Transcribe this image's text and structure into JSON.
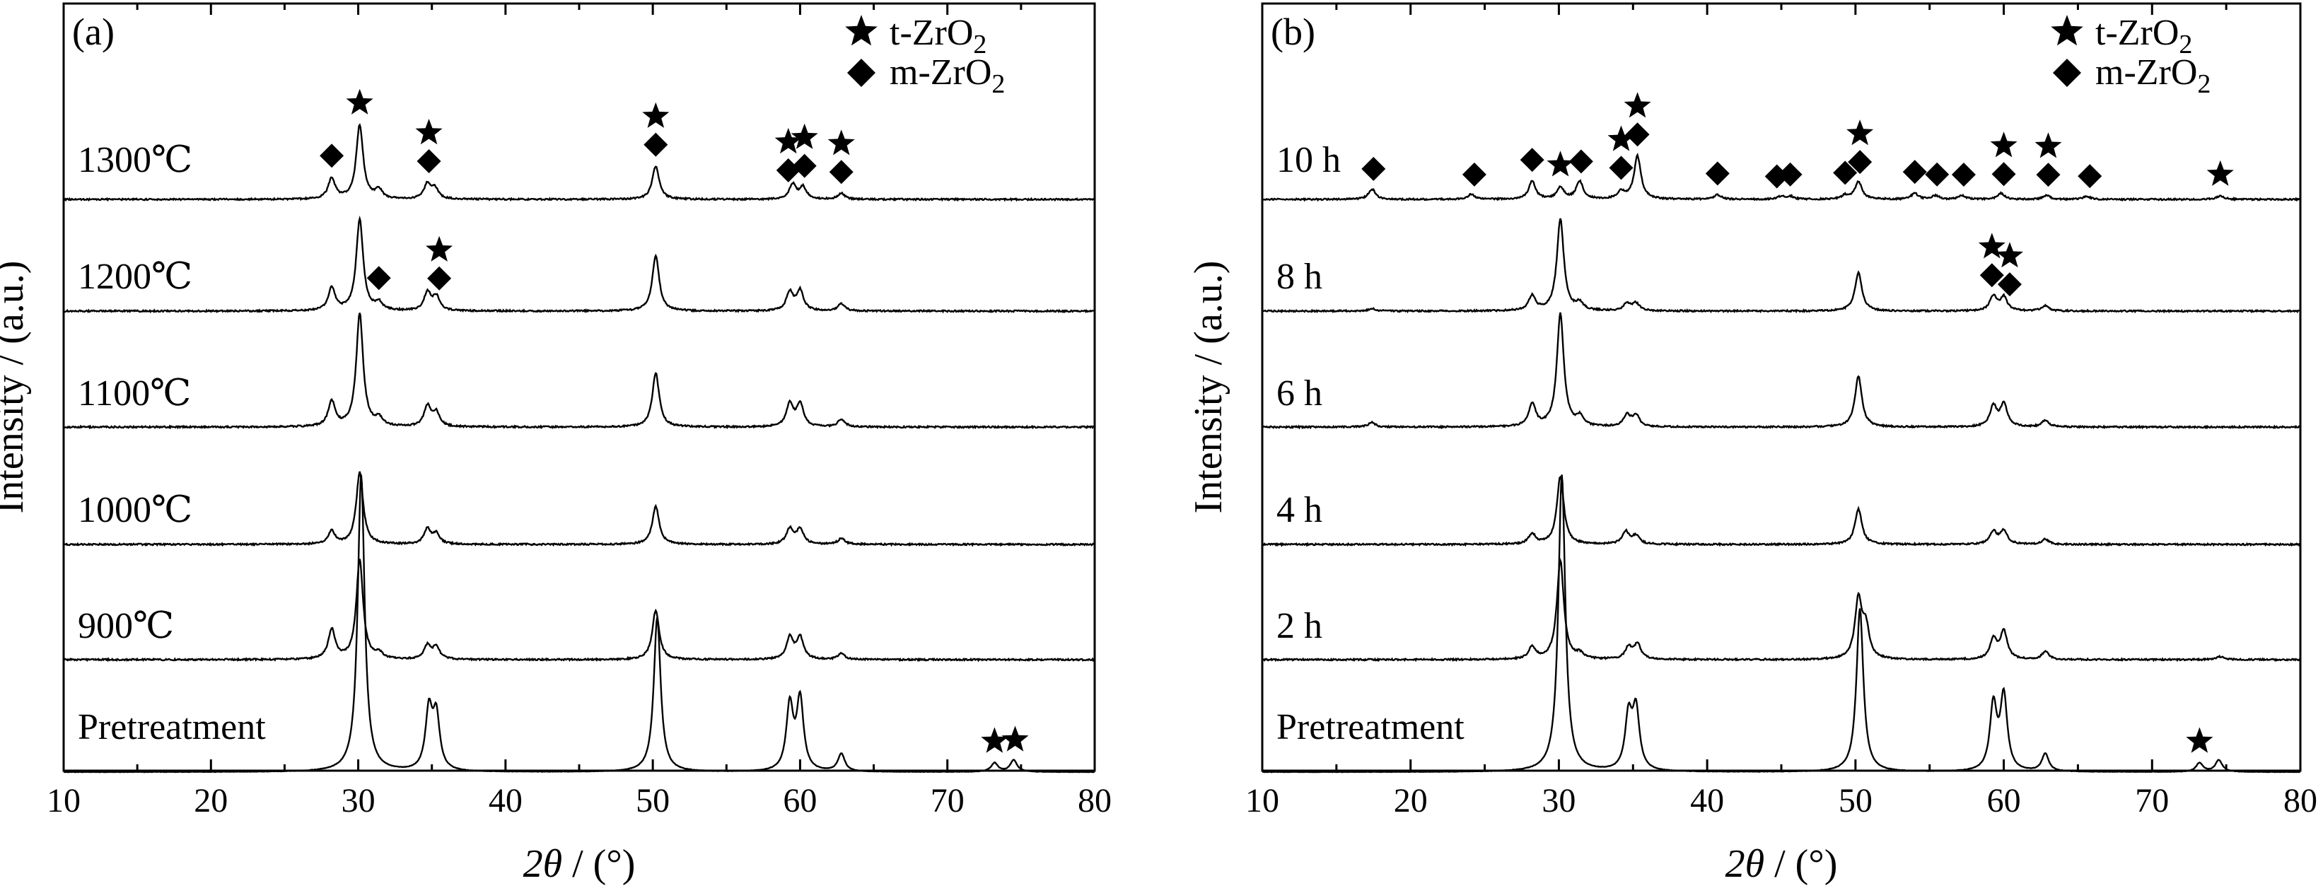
{
  "chart_data": [
    {
      "type": "line",
      "panel_label": "(a)",
      "xlabel_italic": "2θ",
      "xlabel_rest": " / (°)",
      "ylabel": "Intensity / (a.u.)",
      "xlim": [
        10,
        80
      ],
      "xticks": [
        "10",
        "20",
        "30",
        "40",
        "50",
        "60",
        "70",
        "80"
      ],
      "yticks_shown": false,
      "grid": false,
      "legend_position": "top-right",
      "legend": [
        {
          "marker": "star",
          "label": "t-ZrO",
          "sub": "2"
        },
        {
          "marker": "diamond",
          "label": "m-ZrO",
          "sub": "2"
        }
      ],
      "series": [
        {
          "name": "1300℃",
          "peaks": [
            [
              28.2,
              0.28
            ],
            [
              30.1,
              1.0
            ],
            [
              31.4,
              0.12
            ],
            [
              34.7,
              0.2
            ],
            [
              35.2,
              0.14
            ],
            [
              50.2,
              0.45
            ],
            [
              59.5,
              0.2
            ],
            [
              60.2,
              0.16
            ],
            [
              62.8,
              0.08
            ]
          ],
          "markers": [
            {
              "type": "diamond",
              "x": 28.2
            },
            {
              "type": "star",
              "x": 30.1
            },
            {
              "type": "star",
              "x": 34.8
            },
            {
              "type": "diamond",
              "x": 34.8
            },
            {
              "type": "star",
              "x": 50.2
            },
            {
              "type": "diamond",
              "x": 50.2
            },
            {
              "type": "star",
              "x": 59.2
            },
            {
              "type": "diamond",
              "x": 59.2
            },
            {
              "type": "star",
              "x": 60.3
            },
            {
              "type": "diamond",
              "x": 60.3
            },
            {
              "type": "star",
              "x": 62.8
            },
            {
              "type": "diamond",
              "x": 62.8
            }
          ]
        },
        {
          "name": "1200℃",
          "peaks": [
            [
              28.2,
              0.25
            ],
            [
              30.1,
              1.0
            ],
            [
              31.4,
              0.08
            ],
            [
              34.7,
              0.2
            ],
            [
              35.3,
              0.15
            ],
            [
              50.2,
              0.6
            ],
            [
              59.3,
              0.2
            ],
            [
              60.0,
              0.22
            ],
            [
              62.8,
              0.08
            ]
          ],
          "markers": [
            {
              "type": "diamond",
              "x": 31.4
            },
            {
              "type": "star",
              "x": 35.5
            },
            {
              "type": "diamond",
              "x": 35.5
            }
          ]
        },
        {
          "name": "1100℃",
          "peaks": [
            [
              28.2,
              0.22
            ],
            [
              30.1,
              1.0
            ],
            [
              31.4,
              0.07
            ],
            [
              34.7,
              0.18
            ],
            [
              35.3,
              0.12
            ],
            [
              50.2,
              0.48
            ],
            [
              59.3,
              0.2
            ],
            [
              60.0,
              0.2
            ],
            [
              62.8,
              0.07
            ]
          ],
          "markers": []
        },
        {
          "name": "1000℃",
          "peaks": [
            [
              28.2,
              0.15
            ],
            [
              30.1,
              0.85
            ],
            [
              34.7,
              0.18
            ],
            [
              35.3,
              0.12
            ],
            [
              50.2,
              0.45
            ],
            [
              59.3,
              0.18
            ],
            [
              60.0,
              0.18
            ],
            [
              62.8,
              0.07
            ]
          ],
          "markers": []
        },
        {
          "name": "900℃",
          "peaks": [
            [
              28.2,
              0.3
            ],
            [
              30.1,
              1.0
            ],
            [
              31.4,
              0.06
            ],
            [
              34.7,
              0.14
            ],
            [
              35.3,
              0.12
            ],
            [
              50.2,
              0.5
            ],
            [
              59.3,
              0.22
            ],
            [
              60.0,
              0.22
            ],
            [
              62.8,
              0.06
            ]
          ],
          "markers": []
        },
        {
          "name": "Pretreatment",
          "peaks": [
            [
              30.2,
              1.0
            ],
            [
              34.8,
              0.2
            ],
            [
              35.3,
              0.18
            ],
            [
              50.3,
              0.52
            ],
            [
              59.3,
              0.22
            ],
            [
              60.0,
              0.24
            ],
            [
              62.8,
              0.06
            ],
            [
              73.2,
              0.03
            ],
            [
              74.5,
              0.04
            ]
          ],
          "markers": [
            {
              "type": "star",
              "x": 73.2
            },
            {
              "type": "star",
              "x": 74.6
            }
          ]
        }
      ]
    },
    {
      "type": "line",
      "panel_label": "(b)",
      "xlabel_italic": "2θ",
      "xlabel_rest": " / (°)",
      "ylabel": "Intensity / (a.u.)",
      "xlim": [
        10,
        80
      ],
      "xticks": [
        "10",
        "20",
        "30",
        "40",
        "50",
        "60",
        "70",
        "80"
      ],
      "yticks_shown": false,
      "grid": false,
      "legend_position": "top-right",
      "legend": [
        {
          "marker": "star",
          "label": "t-ZrO",
          "sub": "2"
        },
        {
          "marker": "diamond",
          "label": "m-ZrO",
          "sub": "2"
        }
      ],
      "series": [
        {
          "name": "10 h",
          "peaks": [
            [
              17.4,
              0.14
            ],
            [
              24.1,
              0.07
            ],
            [
              28.2,
              0.24
            ],
            [
              30.1,
              0.16
            ],
            [
              31.4,
              0.24
            ],
            [
              34.2,
              0.1
            ],
            [
              35.3,
              0.58
            ],
            [
              40.7,
              0.06
            ],
            [
              45.0,
              0.04
            ],
            [
              45.6,
              0.04
            ],
            [
              49.3,
              0.05
            ],
            [
              50.2,
              0.24
            ],
            [
              54.0,
              0.08
            ],
            [
              55.4,
              0.05
            ],
            [
              57.2,
              0.05
            ],
            [
              59.8,
              0.08
            ],
            [
              62.9,
              0.05
            ],
            [
              65.6,
              0.04
            ],
            [
              74.6,
              0.05
            ]
          ],
          "markers": [
            {
              "type": "diamond",
              "x": 17.5
            },
            {
              "type": "diamond",
              "x": 24.3
            },
            {
              "type": "diamond",
              "x": 28.2
            },
            {
              "type": "star",
              "x": 30.1
            },
            {
              "type": "diamond",
              "x": 31.5
            },
            {
              "type": "star",
              "x": 34.2
            },
            {
              "type": "diamond",
              "x": 34.2
            },
            {
              "type": "star",
              "x": 35.3
            },
            {
              "type": "diamond",
              "x": 35.3
            },
            {
              "type": "diamond",
              "x": 40.7
            },
            {
              "type": "diamond",
              "x": 44.7
            },
            {
              "type": "diamond",
              "x": 45.6
            },
            {
              "type": "diamond",
              "x": 49.3
            },
            {
              "type": "star",
              "x": 50.3
            },
            {
              "type": "diamond",
              "x": 50.3
            },
            {
              "type": "diamond",
              "x": 54.0
            },
            {
              "type": "diamond",
              "x": 55.5
            },
            {
              "type": "diamond",
              "x": 57.3
            },
            {
              "type": "star",
              "x": 60.0
            },
            {
              "type": "diamond",
              "x": 60.0
            },
            {
              "type": "star",
              "x": 63.0
            },
            {
              "type": "diamond",
              "x": 63.0
            },
            {
              "type": "diamond",
              "x": 65.8
            },
            {
              "type": "star",
              "x": 74.6
            }
          ]
        },
        {
          "name": "8 h",
          "peaks": [
            [
              17.4,
              0.03
            ],
            [
              28.2,
              0.16
            ],
            [
              30.1,
              1.0
            ],
            [
              31.4,
              0.08
            ],
            [
              34.6,
              0.08
            ],
            [
              35.2,
              0.08
            ],
            [
              50.2,
              0.42
            ],
            [
              59.3,
              0.16
            ],
            [
              60.0,
              0.15
            ],
            [
              62.8,
              0.06
            ]
          ],
          "markers": [
            {
              "type": "star",
              "x": 59.2
            },
            {
              "type": "diamond",
              "x": 59.2
            },
            {
              "type": "star",
              "x": 60.4
            },
            {
              "type": "diamond",
              "x": 60.4
            }
          ]
        },
        {
          "name": "6 h",
          "peaks": [
            [
              17.4,
              0.04
            ],
            [
              28.2,
              0.2
            ],
            [
              30.1,
              1.0
            ],
            [
              31.4,
              0.08
            ],
            [
              34.6,
              0.1
            ],
            [
              35.2,
              0.1
            ],
            [
              50.2,
              0.45
            ],
            [
              59.3,
              0.18
            ],
            [
              60.0,
              0.2
            ],
            [
              62.8,
              0.06
            ]
          ],
          "markers": []
        },
        {
          "name": "4 h",
          "peaks": [
            [
              28.2,
              0.12
            ],
            [
              30.1,
              0.8
            ],
            [
              34.5,
              0.15
            ],
            [
              35.2,
              0.1
            ],
            [
              50.2,
              0.42
            ],
            [
              59.3,
              0.15
            ],
            [
              60.0,
              0.16
            ],
            [
              62.8,
              0.06
            ]
          ],
          "markers": []
        },
        {
          "name": "2 h",
          "peaks": [
            [
              28.2,
              0.12
            ],
            [
              30.1,
              1.0
            ],
            [
              31.4,
              0.05
            ],
            [
              34.7,
              0.12
            ],
            [
              35.3,
              0.15
            ],
            [
              50.2,
              0.6
            ],
            [
              50.7,
              0.3
            ],
            [
              59.3,
              0.2
            ],
            [
              60.0,
              0.28
            ],
            [
              62.8,
              0.08
            ],
            [
              74.6,
              0.03
            ]
          ],
          "markers": []
        },
        {
          "name": "Pretreatment",
          "peaks": [
            [
              30.2,
              1.0
            ],
            [
              34.7,
              0.18
            ],
            [
              35.2,
              0.2
            ],
            [
              50.3,
              0.55
            ],
            [
              59.3,
              0.22
            ],
            [
              60.0,
              0.25
            ],
            [
              62.8,
              0.06
            ],
            [
              73.2,
              0.03
            ],
            [
              74.5,
              0.04
            ]
          ],
          "markers": [
            {
              "type": "star",
              "x": 73.2
            }
          ]
        }
      ]
    }
  ]
}
